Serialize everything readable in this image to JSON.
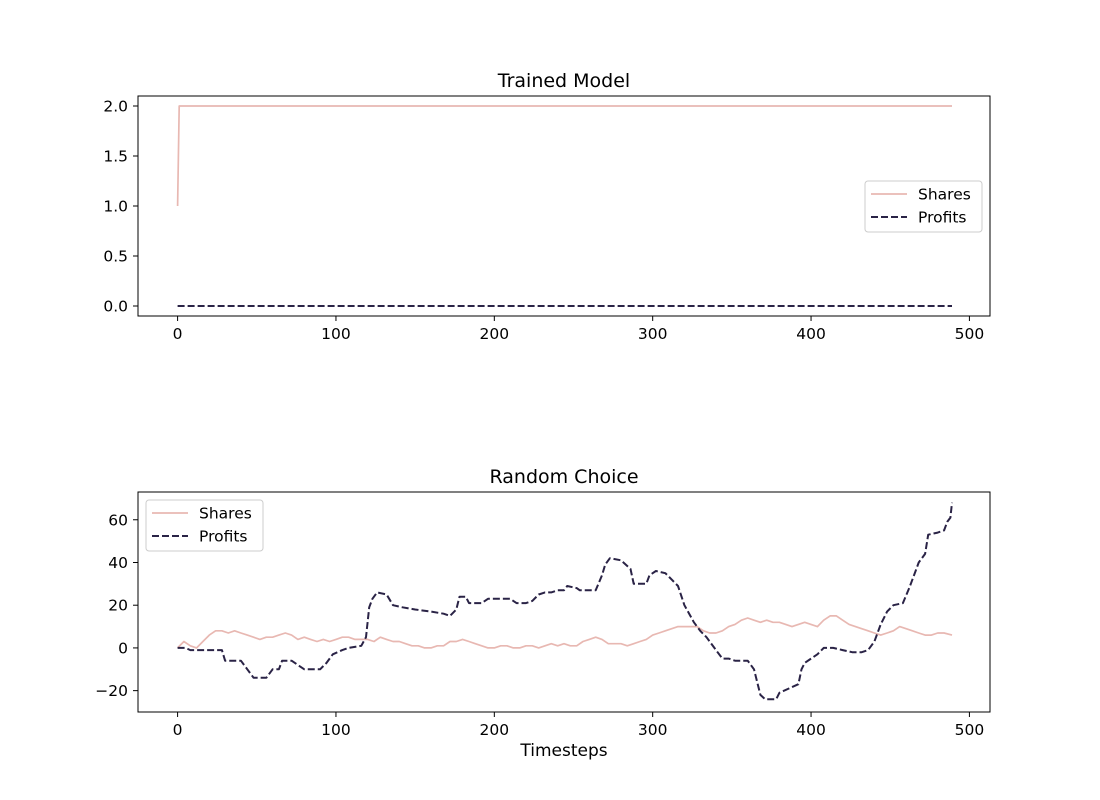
{
  "chart_data": [
    {
      "type": "line",
      "title": "Trained Model",
      "xlabel": "",
      "ylabel": "",
      "xlim": [
        -25,
        513
      ],
      "ylim": [
        -0.1,
        2.1
      ],
      "xticks": [
        0,
        100,
        200,
        300,
        400,
        500
      ],
      "xtick_labels": [
        "0",
        "100",
        "200",
        "300",
        "400",
        "500"
      ],
      "yticks": [
        0.0,
        0.5,
        1.0,
        1.5,
        2.0
      ],
      "ytick_labels": [
        "0.0",
        "0.5",
        "1.0",
        "1.5",
        "2.0"
      ],
      "grid": false,
      "legend_position": "center-right",
      "series": [
        {
          "name": "Shares",
          "color": "#e8b8b2",
          "style": "solid",
          "points": [
            [
              0,
              1
            ],
            [
              1,
              2
            ],
            [
              489,
              2
            ]
          ]
        },
        {
          "name": "Profits",
          "color": "#2a2346",
          "style": "dashed",
          "points": [
            [
              0,
              0
            ],
            [
              489,
              0
            ]
          ]
        }
      ]
    },
    {
      "type": "line",
      "title": "Random Choice",
      "xlabel": "Timesteps",
      "ylabel": "",
      "xlim": [
        -25,
        513
      ],
      "ylim": [
        -30,
        73
      ],
      "xticks": [
        0,
        100,
        200,
        300,
        400,
        500
      ],
      "xtick_labels": [
        "0",
        "100",
        "200",
        "300",
        "400",
        "500"
      ],
      "yticks": [
        -20,
        0,
        20,
        40,
        60
      ],
      "ytick_labels": [
        "−20",
        "0",
        "20",
        "40",
        "60"
      ],
      "grid": false,
      "legend_position": "top-left",
      "series": [
        {
          "name": "Shares",
          "color": "#e8b8b2",
          "style": "solid",
          "points": [
            [
              0,
              0
            ],
            [
              4,
              3
            ],
            [
              8,
              1
            ],
            [
              12,
              0
            ],
            [
              16,
              3
            ],
            [
              20,
              6
            ],
            [
              24,
              8
            ],
            [
              28,
              8
            ],
            [
              32,
              7
            ],
            [
              36,
              8
            ],
            [
              40,
              7
            ],
            [
              44,
              6
            ],
            [
              48,
              5
            ],
            [
              52,
              4
            ],
            [
              56,
              5
            ],
            [
              60,
              5
            ],
            [
              64,
              6
            ],
            [
              68,
              7
            ],
            [
              72,
              6
            ],
            [
              76,
              4
            ],
            [
              80,
              5
            ],
            [
              84,
              4
            ],
            [
              88,
              3
            ],
            [
              92,
              4
            ],
            [
              96,
              3
            ],
            [
              100,
              4
            ],
            [
              104,
              5
            ],
            [
              108,
              5
            ],
            [
              112,
              4
            ],
            [
              116,
              4
            ],
            [
              120,
              4
            ],
            [
              124,
              3
            ],
            [
              128,
              5
            ],
            [
              132,
              4
            ],
            [
              136,
              3
            ],
            [
              140,
              3
            ],
            [
              144,
              2
            ],
            [
              148,
              1
            ],
            [
              152,
              1
            ],
            [
              156,
              0
            ],
            [
              160,
              0
            ],
            [
              164,
              1
            ],
            [
              168,
              1
            ],
            [
              172,
              3
            ],
            [
              176,
              3
            ],
            [
              180,
              4
            ],
            [
              184,
              3
            ],
            [
              188,
              2
            ],
            [
              192,
              1
            ],
            [
              196,
              0
            ],
            [
              200,
              0
            ],
            [
              204,
              1
            ],
            [
              208,
              1
            ],
            [
              212,
              0
            ],
            [
              216,
              0
            ],
            [
              220,
              1
            ],
            [
              224,
              1
            ],
            [
              228,
              0
            ],
            [
              232,
              1
            ],
            [
              236,
              2
            ],
            [
              240,
              1
            ],
            [
              244,
              2
            ],
            [
              248,
              1
            ],
            [
              252,
              1
            ],
            [
              256,
              3
            ],
            [
              260,
              4
            ],
            [
              264,
              5
            ],
            [
              268,
              4
            ],
            [
              272,
              2
            ],
            [
              276,
              2
            ],
            [
              280,
              2
            ],
            [
              284,
              1
            ],
            [
              288,
              2
            ],
            [
              292,
              3
            ],
            [
              296,
              4
            ],
            [
              300,
              6
            ],
            [
              304,
              7
            ],
            [
              308,
              8
            ],
            [
              312,
              9
            ],
            [
              316,
              10
            ],
            [
              320,
              10
            ],
            [
              324,
              10
            ],
            [
              328,
              10
            ],
            [
              332,
              8
            ],
            [
              336,
              7
            ],
            [
              340,
              7
            ],
            [
              344,
              8
            ],
            [
              348,
              10
            ],
            [
              352,
              11
            ],
            [
              356,
              13
            ],
            [
              360,
              14
            ],
            [
              364,
              13
            ],
            [
              368,
              12
            ],
            [
              372,
              13
            ],
            [
              376,
              12
            ],
            [
              380,
              12
            ],
            [
              384,
              11
            ],
            [
              388,
              10
            ],
            [
              392,
              11
            ],
            [
              396,
              12
            ],
            [
              400,
              11
            ],
            [
              404,
              10
            ],
            [
              408,
              13
            ],
            [
              412,
              15
            ],
            [
              416,
              15
            ],
            [
              420,
              13
            ],
            [
              424,
              11
            ],
            [
              428,
              10
            ],
            [
              432,
              9
            ],
            [
              436,
              8
            ],
            [
              440,
              7
            ],
            [
              444,
              6
            ],
            [
              448,
              7
            ],
            [
              452,
              8
            ],
            [
              456,
              10
            ],
            [
              460,
              9
            ],
            [
              464,
              8
            ],
            [
              468,
              7
            ],
            [
              472,
              6
            ],
            [
              476,
              6
            ],
            [
              480,
              7
            ],
            [
              484,
              7
            ],
            [
              489,
              6
            ]
          ]
        },
        {
          "name": "Profits",
          "color": "#2a2346",
          "style": "dashed",
          "points": [
            [
              0,
              0
            ],
            [
              5,
              0
            ],
            [
              8,
              -1
            ],
            [
              28,
              -1
            ],
            [
              30,
              -6
            ],
            [
              40,
              -6
            ],
            [
              44,
              -10
            ],
            [
              48,
              -14
            ],
            [
              56,
              -14
            ],
            [
              60,
              -10
            ],
            [
              64,
              -10
            ],
            [
              66,
              -6
            ],
            [
              72,
              -6
            ],
            [
              76,
              -8
            ],
            [
              80,
              -10
            ],
            [
              90,
              -10
            ],
            [
              94,
              -7
            ],
            [
              98,
              -3
            ],
            [
              104,
              -1
            ],
            [
              108,
              0
            ],
            [
              116,
              1
            ],
            [
              119,
              5
            ],
            [
              121,
              19
            ],
            [
              123,
              23
            ],
            [
              126,
              26
            ],
            [
              132,
              25
            ],
            [
              136,
              20
            ],
            [
              142,
              19
            ],
            [
              150,
              18
            ],
            [
              160,
              17
            ],
            [
              168,
              16
            ],
            [
              172,
              15
            ],
            [
              176,
              18
            ],
            [
              178,
              24
            ],
            [
              182,
              24
            ],
            [
              184,
              21
            ],
            [
              192,
              21
            ],
            [
              196,
              23
            ],
            [
              210,
              23
            ],
            [
              214,
              21
            ],
            [
              220,
              21
            ],
            [
              224,
              22
            ],
            [
              228,
              25
            ],
            [
              232,
              26
            ],
            [
              236,
              26
            ],
            [
              240,
              27
            ],
            [
              244,
              27
            ],
            [
              246,
              29
            ],
            [
              252,
              28
            ],
            [
              254,
              27
            ],
            [
              264,
              27
            ],
            [
              268,
              34
            ],
            [
              270,
              39
            ],
            [
              273,
              42
            ],
            [
              280,
              41
            ],
            [
              286,
              37
            ],
            [
              288,
              30
            ],
            [
              296,
              30
            ],
            [
              298,
              34
            ],
            [
              302,
              36
            ],
            [
              308,
              35
            ],
            [
              312,
              32
            ],
            [
              316,
              29
            ],
            [
              320,
              20
            ],
            [
              326,
              12
            ],
            [
              330,
              8
            ],
            [
              334,
              5
            ],
            [
              340,
              -1
            ],
            [
              344,
              -5
            ],
            [
              348,
              -5
            ],
            [
              352,
              -6
            ],
            [
              360,
              -6
            ],
            [
              364,
              -10
            ],
            [
              368,
              -22
            ],
            [
              371,
              -24
            ],
            [
              378,
              -24
            ],
            [
              380,
              -21
            ],
            [
              386,
              -19
            ],
            [
              392,
              -17
            ],
            [
              394,
              -10
            ],
            [
              396,
              -7
            ],
            [
              404,
              -3
            ],
            [
              408,
              0
            ],
            [
              414,
              0
            ],
            [
              420,
              -1
            ],
            [
              426,
              -2
            ],
            [
              432,
              -2
            ],
            [
              436,
              -1
            ],
            [
              440,
              3
            ],
            [
              444,
              11
            ],
            [
              448,
              17
            ],
            [
              452,
              20
            ],
            [
              458,
              21
            ],
            [
              462,
              28
            ],
            [
              466,
              36
            ],
            [
              468,
              40
            ],
            [
              472,
              44
            ],
            [
              474,
              53
            ],
            [
              480,
              54
            ],
            [
              484,
              55
            ],
            [
              486,
              59
            ],
            [
              488,
              61
            ],
            [
              489,
              68
            ]
          ]
        }
      ]
    }
  ]
}
